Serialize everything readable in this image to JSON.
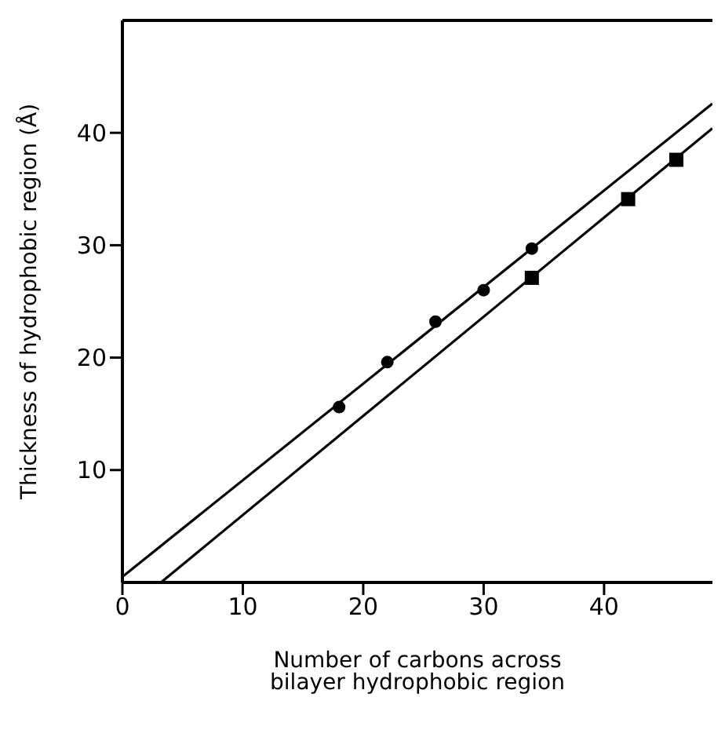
{
  "chart_data": {
    "type": "scatter",
    "xlabel": "Number of carbons across bilayer hydrophobic region",
    "ylabel": "Thickness of hydrophobic region (Å)",
    "xlim": [
      0,
      49
    ],
    "ylim": [
      0,
      50
    ],
    "xticks": [
      0,
      10,
      20,
      30,
      40
    ],
    "yticks": [
      10,
      20,
      30,
      40
    ],
    "grid": false,
    "series": [
      {
        "type": "line",
        "color": "#000000",
        "x": [
          0,
          49
        ],
        "values": [
          0.5,
          42.6
        ],
        "marker": "none",
        "line_style": "solid"
      },
      {
        "type": "line",
        "color": "#000000",
        "x": [
          3.2,
          49
        ],
        "values": [
          0,
          40.4
        ],
        "marker": "none",
        "line_style": "solid"
      },
      {
        "color": "#000000",
        "x": [
          18,
          22,
          26,
          30,
          34
        ],
        "values": [
          15.6,
          19.6,
          23.2,
          26,
          29.7
        ],
        "marker": "circle"
      },
      {
        "color": "#000000",
        "x": [
          34,
          42,
          46
        ],
        "values": [
          27.1,
          34.1,
          37.6
        ],
        "marker": "square"
      }
    ]
  }
}
